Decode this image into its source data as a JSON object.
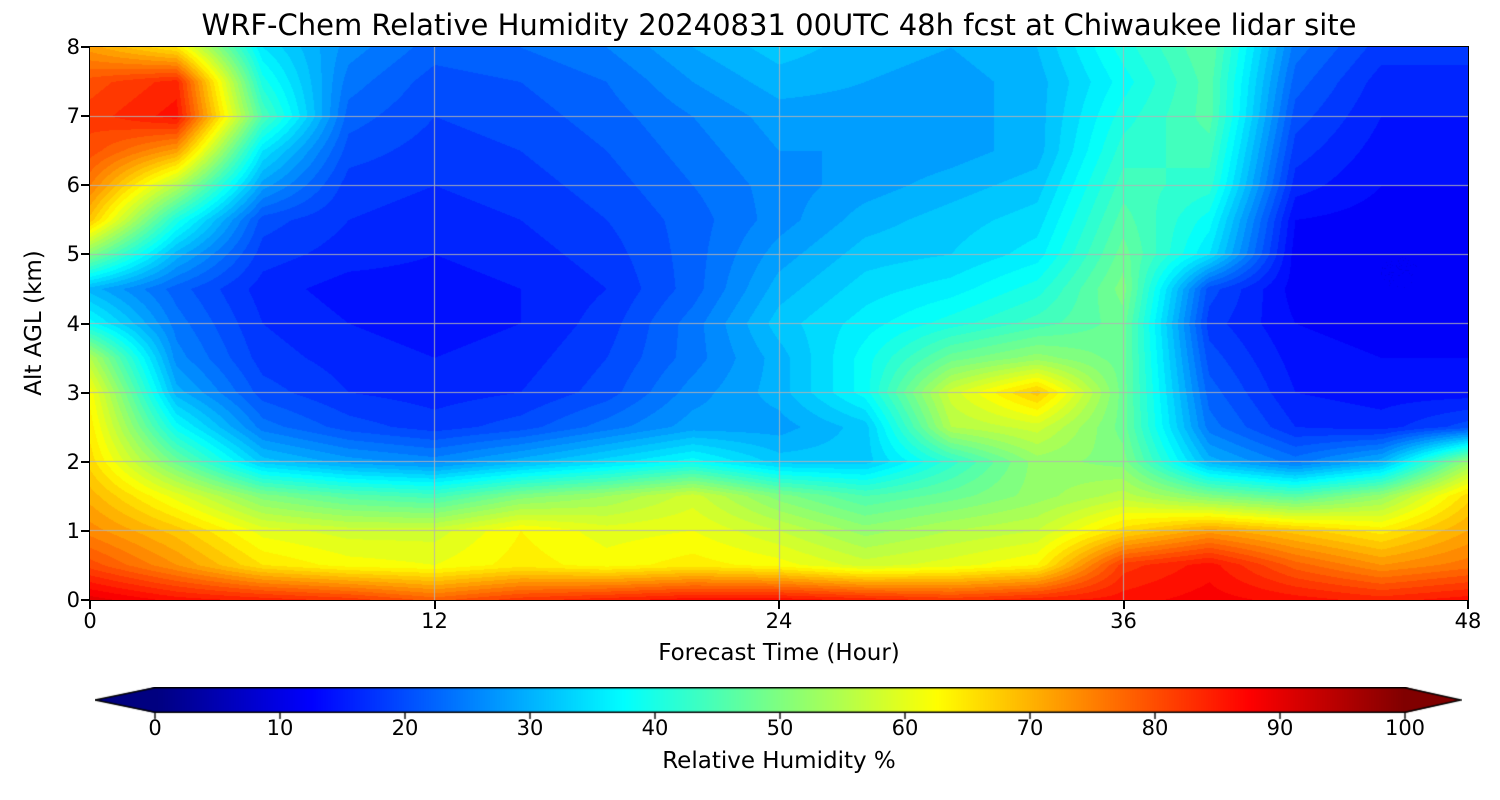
{
  "title": "WRF-Chem Relative Humidity 20240831 00UTC 48h fcst at Chiwaukee lidar site",
  "chart_data": {
    "type": "heatmap",
    "title": "WRF-Chem Relative Humidity 20240831 00UTC 48h fcst at Chiwaukee lidar site",
    "xlabel": "Forecast Time (Hour)",
    "ylabel": "Alt AGL (km)",
    "xlim": [
      0,
      48
    ],
    "ylim": [
      0,
      8
    ],
    "x_ticks": [
      0,
      12,
      24,
      36,
      48
    ],
    "y_ticks": [
      0,
      1,
      2,
      3,
      4,
      5,
      6,
      7,
      8
    ],
    "grid": true,
    "colormap": "jet",
    "colors": {
      "under": "#000080",
      "over": "#800000",
      "gridline": "#b4b4b4",
      "frame": "#000000"
    },
    "colorbar": {
      "label": "Relative Humidity %",
      "ticks": [
        0,
        10,
        20,
        30,
        40,
        50,
        60,
        70,
        80,
        90,
        100
      ],
      "vmin": 0,
      "vmax": 100,
      "extend": "both",
      "orientation": "horizontal"
    },
    "x": [
      0,
      3,
      6,
      9,
      12,
      15,
      18,
      21,
      24,
      27,
      30,
      33,
      36,
      39,
      42,
      45,
      48
    ],
    "y": [
      0,
      0.5,
      1,
      1.5,
      2,
      2.5,
      3,
      3.5,
      4,
      4.5,
      5,
      5.5,
      6,
      6.5,
      7,
      7.5,
      8
    ],
    "values_units": "percent RH, rows ordered by ascending altitude y",
    "values": [
      [
        90,
        86,
        84,
        82,
        78,
        82,
        84,
        86,
        86,
        84,
        82,
        84,
        86,
        88,
        86,
        84,
        86
      ],
      [
        80,
        73,
        65,
        62,
        61,
        64,
        62,
        64,
        62,
        58,
        60,
        63,
        82,
        86,
        78,
        73,
        76
      ],
      [
        74,
        68,
        60,
        58,
        58,
        63,
        60,
        61,
        57,
        52,
        55,
        57,
        66,
        72,
        68,
        64,
        71
      ],
      [
        70,
        60,
        50,
        46,
        44,
        50,
        53,
        58,
        50,
        45,
        48,
        52,
        56,
        50,
        46,
        52,
        66
      ],
      [
        66,
        48,
        32,
        28,
        26,
        30,
        34,
        38,
        32,
        32,
        42,
        52,
        50,
        30,
        24,
        30,
        52
      ],
      [
        64,
        38,
        24,
        20,
        18,
        20,
        24,
        28,
        28,
        32,
        55,
        58,
        48,
        24,
        17,
        16,
        20
      ],
      [
        62,
        30,
        20,
        17,
        16,
        17,
        20,
        26,
        30,
        38,
        58,
        68,
        48,
        22,
        15,
        14,
        14
      ],
      [
        55,
        26,
        18,
        16,
        15,
        16,
        19,
        24,
        30,
        38,
        48,
        52,
        48,
        20,
        14,
        13,
        13
      ],
      [
        38,
        24,
        17,
        15,
        14,
        15,
        18,
        24,
        32,
        36,
        40,
        44,
        48,
        18,
        13,
        12,
        12
      ],
      [
        30,
        22,
        16,
        14,
        14,
        15,
        17,
        22,
        30,
        34,
        36,
        40,
        50,
        20,
        12,
        11,
        11
      ],
      [
        50,
        30,
        18,
        16,
        15,
        16,
        18,
        22,
        28,
        32,
        33,
        36,
        48,
        35,
        12,
        11,
        11
      ],
      [
        68,
        40,
        20,
        17,
        16,
        17,
        19,
        22,
        26,
        30,
        32,
        34,
        46,
        38,
        13,
        12,
        12
      ],
      [
        75,
        55,
        28,
        18,
        17,
        18,
        20,
        23,
        26,
        28,
        30,
        32,
        44,
        42,
        16,
        13,
        13
      ],
      [
        80,
        72,
        35,
        20,
        18,
        19,
        21,
        24,
        27,
        27,
        28,
        30,
        42,
        44,
        18,
        14,
        14
      ],
      [
        82,
        86,
        45,
        22,
        19,
        20,
        22,
        25,
        28,
        28,
        28,
        30,
        40,
        46,
        20,
        15,
        15
      ],
      [
        80,
        84,
        40,
        24,
        20,
        21,
        23,
        27,
        30,
        29,
        28,
        30,
        38,
        46,
        22,
        16,
        16
      ],
      [
        72,
        65,
        35,
        26,
        22,
        23,
        25,
        29,
        32,
        30,
        29,
        31,
        40,
        47,
        24,
        18,
        18
      ]
    ]
  }
}
